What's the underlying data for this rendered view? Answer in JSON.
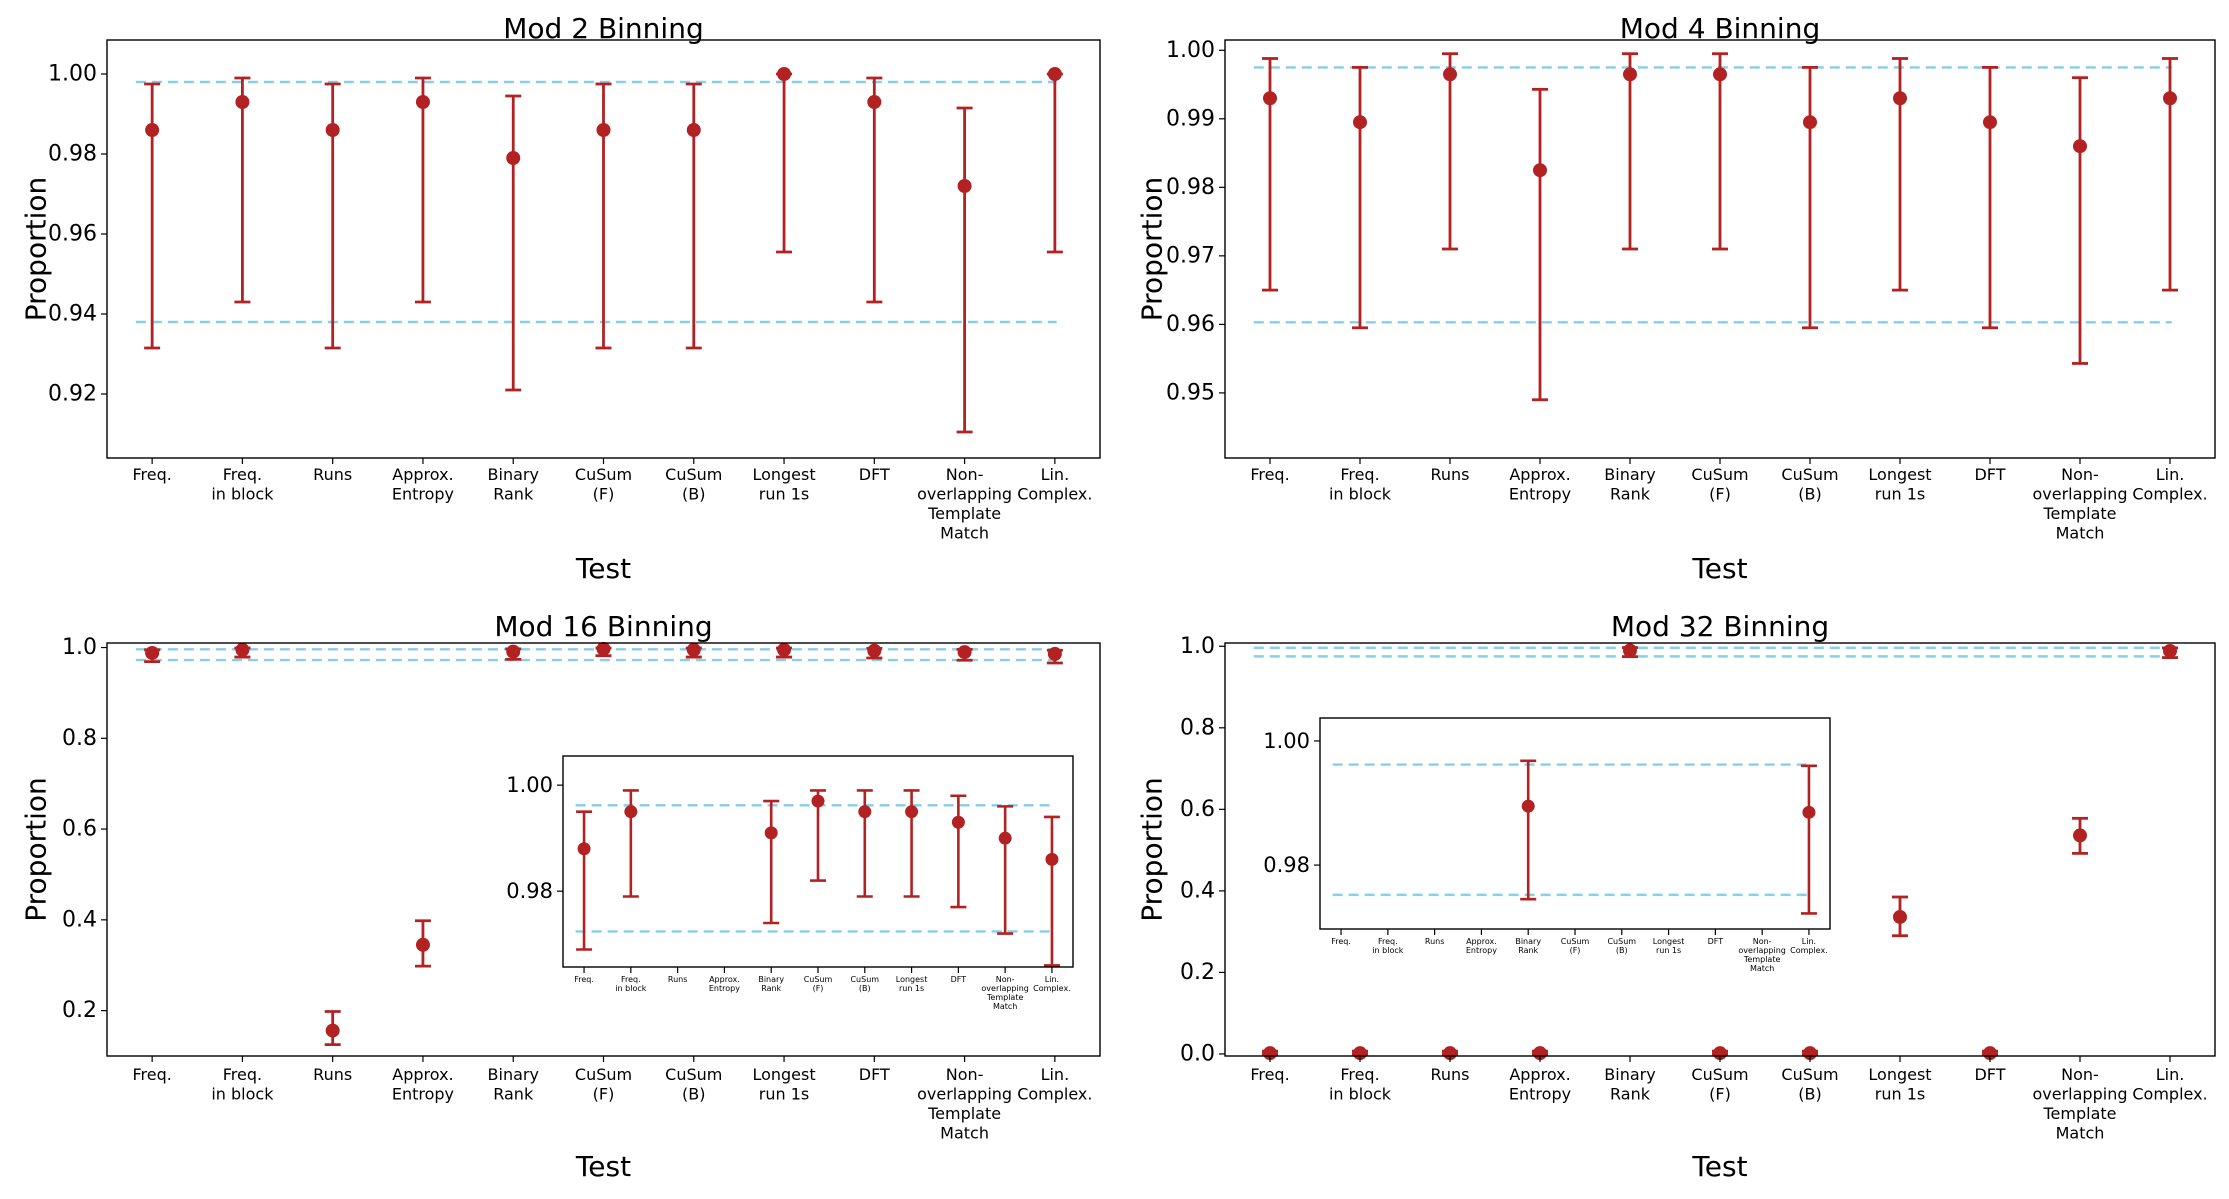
{
  "figure": {
    "colors": {
      "points": "#b22222",
      "bounds": "#87cee8",
      "axes": "#000000",
      "background": "#ffffff"
    }
  },
  "chart_data": [
    {
      "id": "mod2",
      "type": "scatter",
      "title": "Mod 2 Binning",
      "xlabel": "Test",
      "ylabel": "Proportion",
      "ylim": [
        0.904,
        1.0085
      ],
      "yticks": [
        0.92,
        0.94,
        0.96,
        0.98,
        1.0
      ],
      "ytick_labels": [
        "0.92",
        "0.94",
        "0.96",
        "0.98",
        "1.00"
      ],
      "categories": [
        "Freq.",
        "Freq.\nin block",
        "Runs",
        "Approx.\nEntropy",
        "Binary\nRank",
        "CuSum\n(F)",
        "CuSum\n(B)",
        "Longest\nrun 1s",
        "DFT",
        "Non-\noverlapping\nTemplate\nMatch",
        "Lin.\nComplex."
      ],
      "values": [
        0.986,
        0.993,
        0.986,
        0.993,
        0.979,
        0.986,
        0.986,
        1.0,
        0.993,
        0.972,
        1.0
      ],
      "ci_low": [
        0.9315,
        0.943,
        0.9315,
        0.943,
        0.921,
        0.9315,
        0.9315,
        0.9555,
        0.943,
        0.9105,
        0.9555
      ],
      "ci_high": [
        0.9975,
        0.999,
        0.9975,
        0.999,
        0.9945,
        0.9975,
        0.9975,
        1.0,
        0.999,
        0.9915,
        1.0
      ],
      "bounds": [
        0.938,
        0.998
      ]
    },
    {
      "id": "mod4",
      "type": "scatter",
      "title": "Mod 4 Binning",
      "xlabel": "Test",
      "ylabel": "Proportion",
      "ylim": [
        0.9405,
        1.0015
      ],
      "yticks": [
        0.95,
        0.96,
        0.97,
        0.98,
        0.99,
        1.0
      ],
      "ytick_labels": [
        "0.95",
        "0.96",
        "0.97",
        "0.98",
        "0.99",
        "1.00"
      ],
      "categories": [
        "Freq.",
        "Freq.\nin block",
        "Runs",
        "Approx.\nEntropy",
        "Binary\nRank",
        "CuSum\n(F)",
        "CuSum\n(B)",
        "Longest\nrun 1s",
        "DFT",
        "Non-\noverlapping\nTemplate\nMatch",
        "Lin.\nComplex."
      ],
      "values": [
        0.993,
        0.9895,
        0.9965,
        0.9825,
        0.9965,
        0.9965,
        0.9895,
        0.993,
        0.9895,
        0.986,
        0.993
      ],
      "ci_low": [
        0.965,
        0.9595,
        0.971,
        0.949,
        0.971,
        0.971,
        0.9595,
        0.965,
        0.9595,
        0.9543,
        0.965
      ],
      "ci_high": [
        0.9988,
        0.9975,
        0.9995,
        0.9943,
        0.9995,
        0.9995,
        0.9975,
        0.9988,
        0.9975,
        0.996,
        0.9988
      ],
      "bounds": [
        0.9603,
        0.9975
      ]
    },
    {
      "id": "mod16",
      "type": "scatter",
      "title": "Mod 16 Binning",
      "xlabel": "Test",
      "ylabel": "Proportion",
      "ylim": [
        0.1,
        1.01
      ],
      "yticks": [
        0.2,
        0.4,
        0.6,
        0.8,
        1.0
      ],
      "ytick_labels": [
        "0.2",
        "0.4",
        "0.6",
        "0.8",
        "1.0"
      ],
      "categories": [
        "Freq.",
        "Freq.\nin block",
        "Runs",
        "Approx.\nEntropy",
        "Binary\nRank",
        "CuSum\n(F)",
        "CuSum\n(B)",
        "Longest\nrun 1s",
        "DFT",
        "Non-\noverlapping\nTemplate\nMatch",
        "Lin.\nComplex."
      ],
      "values": [
        0.988,
        0.995,
        0.156,
        0.345,
        0.991,
        0.997,
        0.995,
        0.995,
        0.993,
        0.99,
        0.986
      ],
      "ci_low": [
        0.969,
        0.979,
        0.125,
        0.298,
        0.974,
        0.982,
        0.979,
        0.979,
        0.977,
        0.972,
        0.966
      ],
      "ci_high": [
        0.995,
        0.999,
        0.198,
        0.398,
        0.997,
        0.999,
        0.999,
        0.999,
        0.998,
        0.996,
        0.994
      ],
      "bounds": [
        0.9724,
        0.9962
      ],
      "inset": {
        "ylim": [
          0.9657,
          1.0055
        ],
        "yticks": [
          0.98,
          1.0
        ],
        "ytick_labels": [
          "0.98",
          "1.00"
        ],
        "show": [
          0,
          1,
          4,
          5,
          6,
          7,
          8,
          9,
          10
        ]
      }
    },
    {
      "id": "mod32",
      "type": "scatter",
      "title": "Mod 32 Binning",
      "xlabel": "Test",
      "ylabel": "Proportion",
      "ylim": [
        -0.005,
        1.008
      ],
      "yticks": [
        0.0,
        0.2,
        0.4,
        0.6,
        0.8,
        1.0
      ],
      "ytick_labels": [
        "0.0",
        "0.2",
        "0.4",
        "0.6",
        "0.8",
        "1.0"
      ],
      "categories": [
        "Freq.",
        "Freq.\nin block",
        "Runs",
        "Approx.\nEntropy",
        "Binary\nRank",
        "CuSum\n(F)",
        "CuSum\n(B)",
        "Longest\nrun 1s",
        "DFT",
        "Non-\noverlapping\nTemplate\nMatch",
        "Lin.\nComplex."
      ],
      "values": [
        0.002,
        0.002,
        0.002,
        0.002,
        0.9895,
        0.002,
        0.002,
        0.336,
        0.002,
        0.536,
        0.9885
      ],
      "ci_low": [
        0.0,
        0.0,
        0.0,
        0.0,
        0.9745,
        0.0,
        0.0,
        0.29,
        0.0,
        0.492,
        0.9722
      ],
      "ci_high": [
        0.007,
        0.007,
        0.007,
        0.007,
        0.9968,
        0.007,
        0.007,
        0.385,
        0.007,
        0.578,
        0.996
      ],
      "bounds": [
        0.9752,
        0.9962
      ],
      "inset": {
        "ylim": [
          0.9697,
          1.0037
        ],
        "yticks": [
          0.98,
          1.0
        ],
        "ytick_labels": [
          "0.98",
          "1.00"
        ],
        "show": [
          4,
          10
        ]
      }
    }
  ]
}
